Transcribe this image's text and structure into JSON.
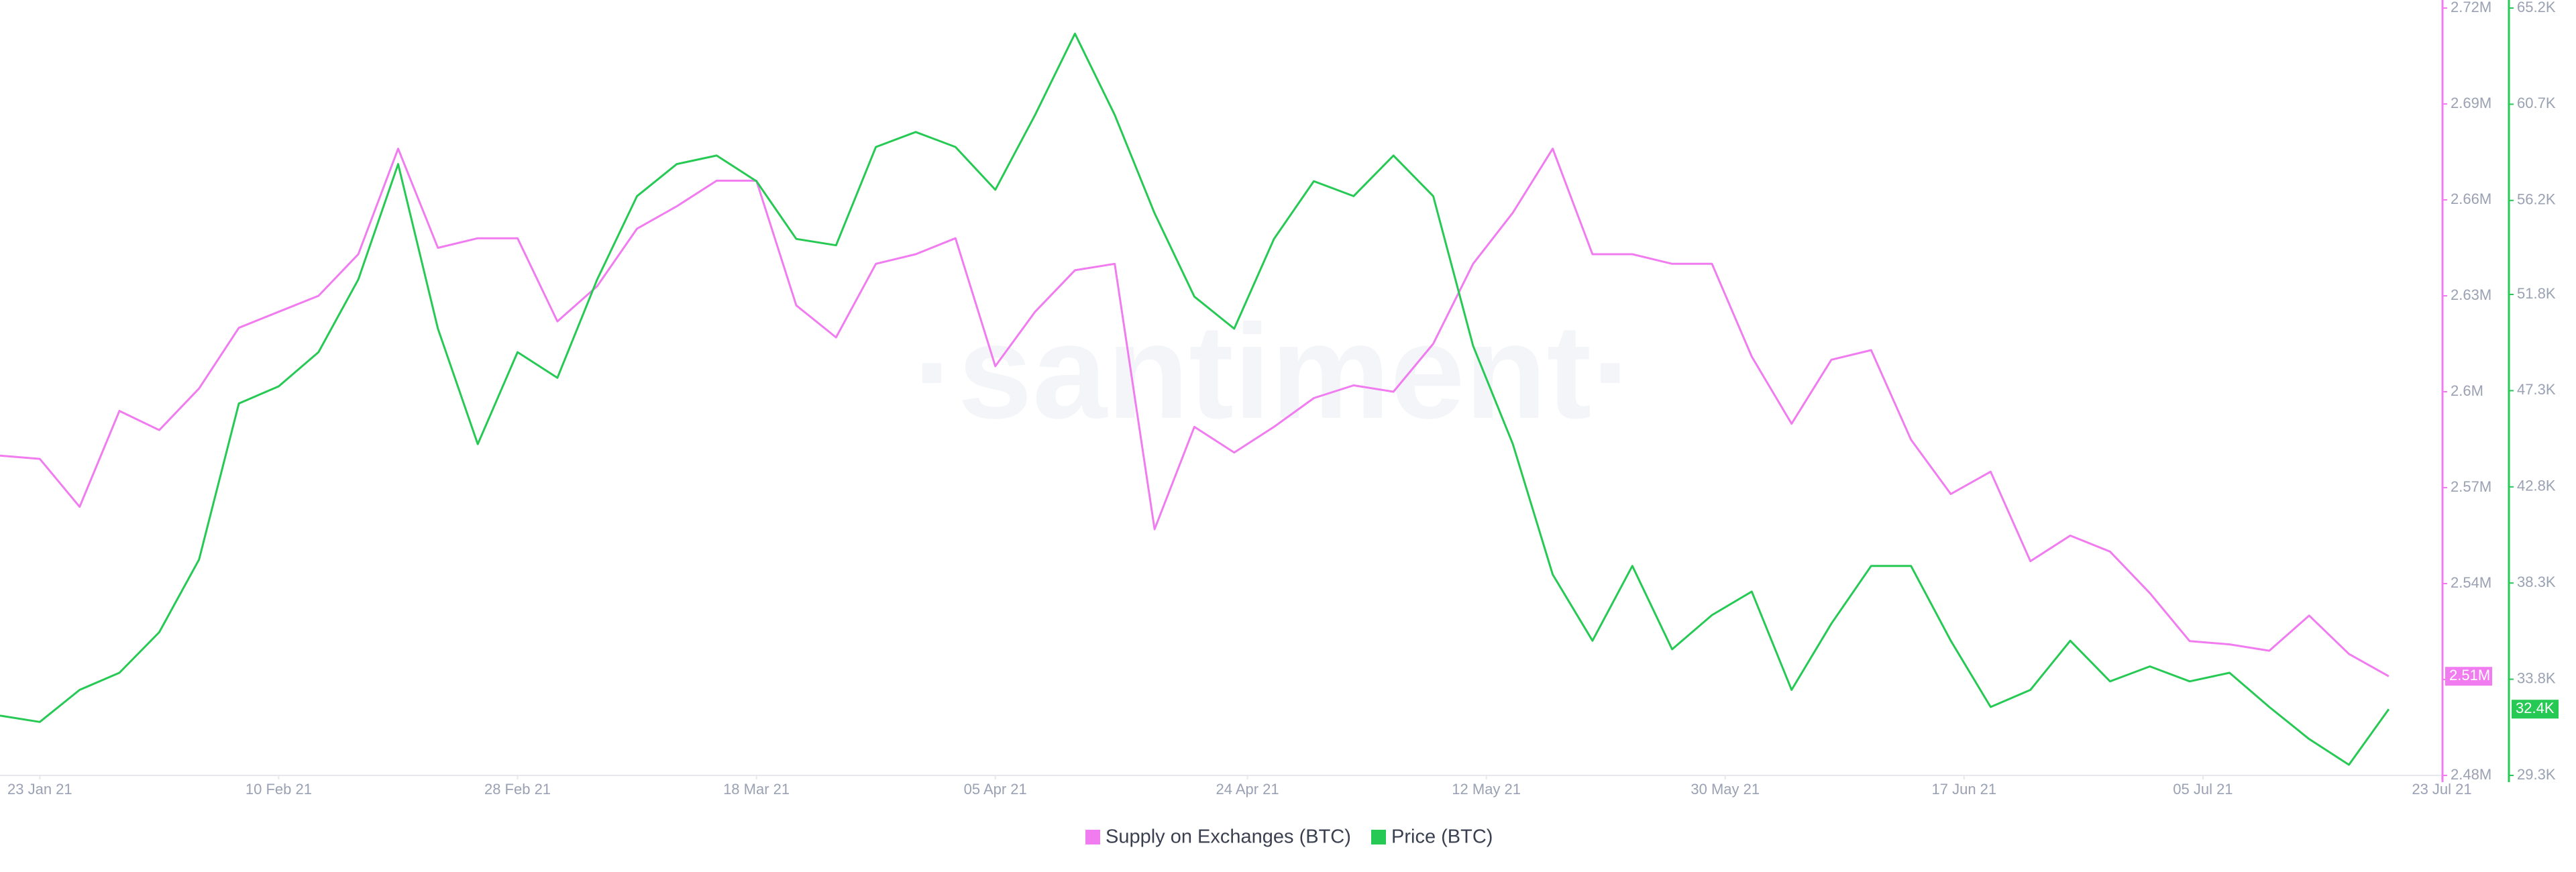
{
  "chart_data": {
    "type": "line",
    "watermark": "·santiment·",
    "x": [
      "2021-01-20",
      "2021-01-23",
      "2021-01-26",
      "2021-01-29",
      "2021-02-01",
      "2021-02-04",
      "2021-02-07",
      "2021-02-10",
      "2021-02-13",
      "2021-02-16",
      "2021-02-19",
      "2021-02-22",
      "2021-02-25",
      "2021-02-28",
      "2021-03-03",
      "2021-03-06",
      "2021-03-09",
      "2021-03-12",
      "2021-03-15",
      "2021-03-18",
      "2021-03-21",
      "2021-03-24",
      "2021-03-27",
      "2021-03-30",
      "2021-04-02",
      "2021-04-05",
      "2021-04-08",
      "2021-04-11",
      "2021-04-14",
      "2021-04-17",
      "2021-04-20",
      "2021-04-23",
      "2021-04-26",
      "2021-04-29",
      "2021-05-02",
      "2021-05-05",
      "2021-05-08",
      "2021-05-11",
      "2021-05-14",
      "2021-05-17",
      "2021-05-20",
      "2021-05-23",
      "2021-05-26",
      "2021-05-29",
      "2021-06-01",
      "2021-06-04",
      "2021-06-07",
      "2021-06-10",
      "2021-06-13",
      "2021-06-16",
      "2021-06-19",
      "2021-06-22",
      "2021-06-25",
      "2021-06-28",
      "2021-07-01",
      "2021-07-04",
      "2021-07-07",
      "2021-07-10",
      "2021-07-13",
      "2021-07-16",
      "2021-07-19"
    ],
    "xlim": [
      "2021-01-20",
      "2021-07-23"
    ],
    "xticks": [
      {
        "value": "2021-01-23",
        "label": "23 Jan 21"
      },
      {
        "value": "2021-02-10",
        "label": "10 Feb 21"
      },
      {
        "value": "2021-02-28",
        "label": "28 Feb 21"
      },
      {
        "value": "2021-03-18",
        "label": "18 Mar 21"
      },
      {
        "value": "2021-04-05",
        "label": "05 Apr 21"
      },
      {
        "value": "2021-04-24",
        "label": "24 Apr 21"
      },
      {
        "value": "2021-05-12",
        "label": "12 May 21"
      },
      {
        "value": "2021-05-30",
        "label": "30 May 21"
      },
      {
        "value": "2021-06-17",
        "label": "17 Jun 21"
      },
      {
        "value": "2021-07-05",
        "label": "05 Jul 21"
      },
      {
        "value": "2021-07-23",
        "label": "23 Jul 21"
      }
    ],
    "ylim": [
      2480000,
      2720000
    ],
    "yticks": [
      {
        "value": 2480000,
        "label": "2.48M"
      },
      {
        "value": 2510000,
        "label": "2.51M"
      },
      {
        "value": 2540000,
        "label": "2.54M"
      },
      {
        "value": 2570000,
        "label": "2.57M"
      },
      {
        "value": 2600000,
        "label": "2.6M"
      },
      {
        "value": 2630000,
        "label": "2.63M"
      },
      {
        "value": 2660000,
        "label": "2.66M"
      },
      {
        "value": 2690000,
        "label": "2.69M"
      },
      {
        "value": 2720000,
        "label": "2.72M"
      }
    ],
    "y2lim": [
      29300,
      65200
    ],
    "y2ticks": [
      {
        "value": 29300,
        "label": "29.3K"
      },
      {
        "value": 33800,
        "label": "33.8K"
      },
      {
        "value": 38300,
        "label": "38.3K"
      },
      {
        "value": 42800,
        "label": "42.8K"
      },
      {
        "value": 47300,
        "label": "47.3K"
      },
      {
        "value": 51800,
        "label": "51.8K"
      },
      {
        "value": 56200,
        "label": "56.2K"
      },
      {
        "value": 60700,
        "label": "60.7K"
      },
      {
        "value": 65200,
        "label": "65.2K"
      }
    ],
    "series": [
      {
        "name": "Supply on Exchanges (BTC)",
        "color": "#f07cf0",
        "axis": "y",
        "last_label": "2.51M",
        "values": [
          2580000,
          2579000,
          2564000,
          2594000,
          2588000,
          2601000,
          2620000,
          2625000,
          2630000,
          2643000,
          2676000,
          2645000,
          2648000,
          2648000,
          2622000,
          2633000,
          2651000,
          2658000,
          2666000,
          2666000,
          2627000,
          2617000,
          2640000,
          2643000,
          2648000,
          2608000,
          2625000,
          2638000,
          2640000,
          2557000,
          2589000,
          2581000,
          2589000,
          2598000,
          2602000,
          2600000,
          2615000,
          2640000,
          2656000,
          2676000,
          2643000,
          2643000,
          2640000,
          2640000,
          2611000,
          2590000,
          2610000,
          2613000,
          2585000,
          2568000,
          2575000,
          2547000,
          2555000,
          2550000,
          2537000,
          2522000,
          2521000,
          2519000,
          2530000,
          2518000,
          2511000
        ]
      },
      {
        "name": "Price (BTC)",
        "color": "#26c953",
        "axis": "y2",
        "last_label": "32.4K",
        "values": [
          32100,
          31800,
          33300,
          34100,
          36000,
          39400,
          46700,
          47500,
          49100,
          52500,
          57900,
          50200,
          44800,
          49100,
          47900,
          52500,
          56400,
          57900,
          58300,
          57100,
          54400,
          54100,
          58700,
          59400,
          58700,
          56700,
          60200,
          64000,
          60200,
          55600,
          51700,
          50200,
          54400,
          57100,
          56400,
          58300,
          56400,
          49400,
          44800,
          38700,
          35600,
          39100,
          35200,
          36800,
          37900,
          33300,
          36400,
          39100,
          39100,
          35600,
          32500,
          33300,
          35600,
          33700,
          34400,
          33700,
          34100,
          32500,
          31000,
          29800,
          32400
        ]
      }
    ]
  }
}
